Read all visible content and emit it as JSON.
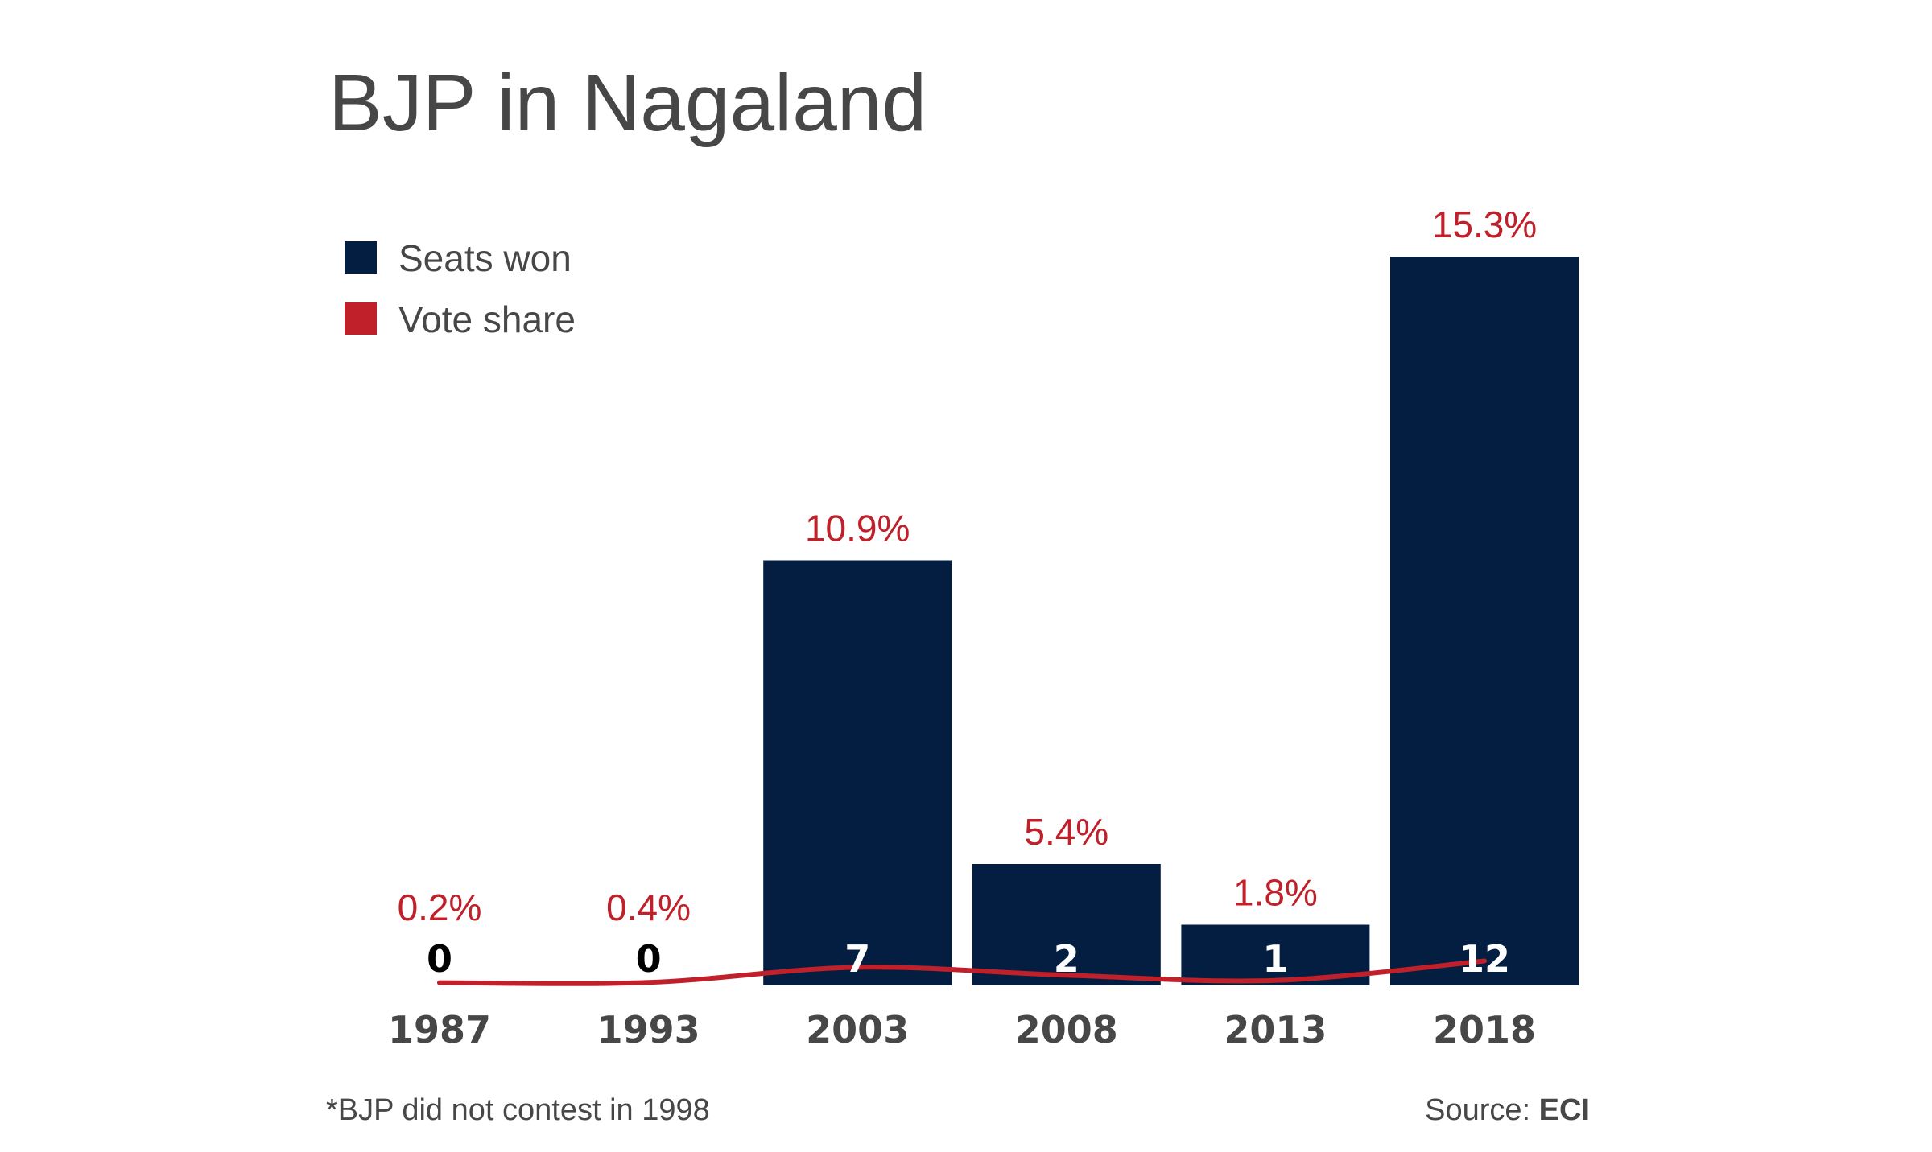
{
  "colors": {
    "seats": "#041e42",
    "vote": "#c0202a",
    "text": "#474747",
    "seat_label_outside": "#000000",
    "seat_label_inside": "#ffffff"
  },
  "chart_data": {
    "type": "bar",
    "title": "BJP in Nagaland",
    "categories": [
      "1987",
      "1993",
      "2003",
      "2008",
      "2013",
      "2018"
    ],
    "series": [
      {
        "name": "Seats won",
        "type": "bar",
        "values": [
          0,
          0,
          7,
          2,
          1,
          12
        ]
      },
      {
        "name": "Vote share",
        "type": "line",
        "values": [
          0.2,
          0.4,
          10.9,
          5.4,
          1.8,
          15.3
        ]
      }
    ],
    "vote_labels": [
      "0.2%",
      "0.4%",
      "10.9%",
      "5.4%",
      "1.8%",
      "15.3%"
    ],
    "seat_labels": [
      "0",
      "0",
      "7",
      "2",
      "1",
      "12"
    ],
    "ylim": [
      0,
      12
    ],
    "grid": false,
    "legend": "top-left",
    "footnote": "*BJP did not contest in 1998",
    "source_label": "Source:",
    "source_name": "ECI"
  }
}
